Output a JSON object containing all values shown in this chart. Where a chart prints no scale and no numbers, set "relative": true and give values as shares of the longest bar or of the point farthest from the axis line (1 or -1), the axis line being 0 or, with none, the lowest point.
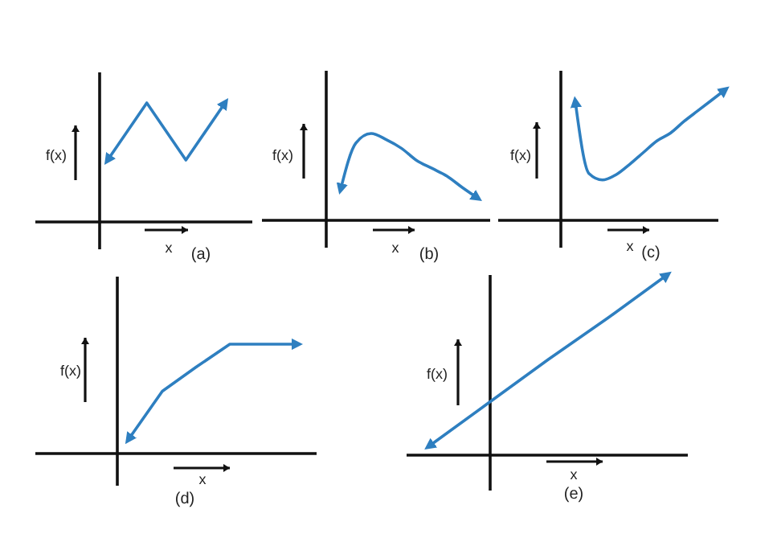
{
  "chart_data": [
    {
      "type": "line",
      "relative": true,
      "categories": [
        null,
        null,
        null,
        null
      ],
      "values": [
        0.52,
        1,
        0.52,
        1
      ],
      "color": "#2e7fc0",
      "xlabel": "x",
      "ylabel": "f(x)",
      "annotations": [
        "(a)"
      ]
    },
    {
      "type": "line",
      "relative": true,
      "categories": [
        null,
        null,
        null,
        null,
        null,
        null,
        null,
        null,
        null,
        null
      ],
      "values": [
        0.36,
        0.89,
        1,
        0.93,
        0.83,
        0.69,
        0.6,
        0.51,
        0.38,
        0.26
      ],
      "color": "#2e7fc0",
      "xlabel": "x",
      "ylabel": "f(x)",
      "annotations": [
        "(b)"
      ]
    },
    {
      "type": "line",
      "relative": true,
      "categories": [
        null,
        null,
        null,
        null,
        null,
        null,
        null,
        null,
        null,
        null,
        null,
        null
      ],
      "values": [
        0.91,
        0.36,
        0.31,
        0.35,
        0.43,
        0.52,
        0.61,
        0.67,
        0.76,
        0.84,
        0.92,
        1
      ],
      "color": "#2e7fc0",
      "xlabel": "x",
      "ylabel": "f(x)",
      "annotations": [
        "(c)"
      ]
    },
    {
      "type": "line",
      "relative": true,
      "categories": [
        null,
        null,
        null,
        null,
        null,
        null
      ],
      "values": [
        0.13,
        0.57,
        0.79,
        1,
        1,
        1
      ],
      "color": "#2e7fc0",
      "xlabel": "x",
      "ylabel": "f(x)",
      "annotations": [
        "(d)"
      ]
    },
    {
      "type": "line",
      "relative": true,
      "categories": [
        null,
        null,
        null,
        null,
        null
      ],
      "values": [
        0.05,
        0.29,
        0.53,
        0.76,
        1
      ],
      "color": "#2e7fc0",
      "xlabel": "x",
      "ylabel": "f(x)",
      "annotations": [
        "(e)"
      ]
    }
  ]
}
